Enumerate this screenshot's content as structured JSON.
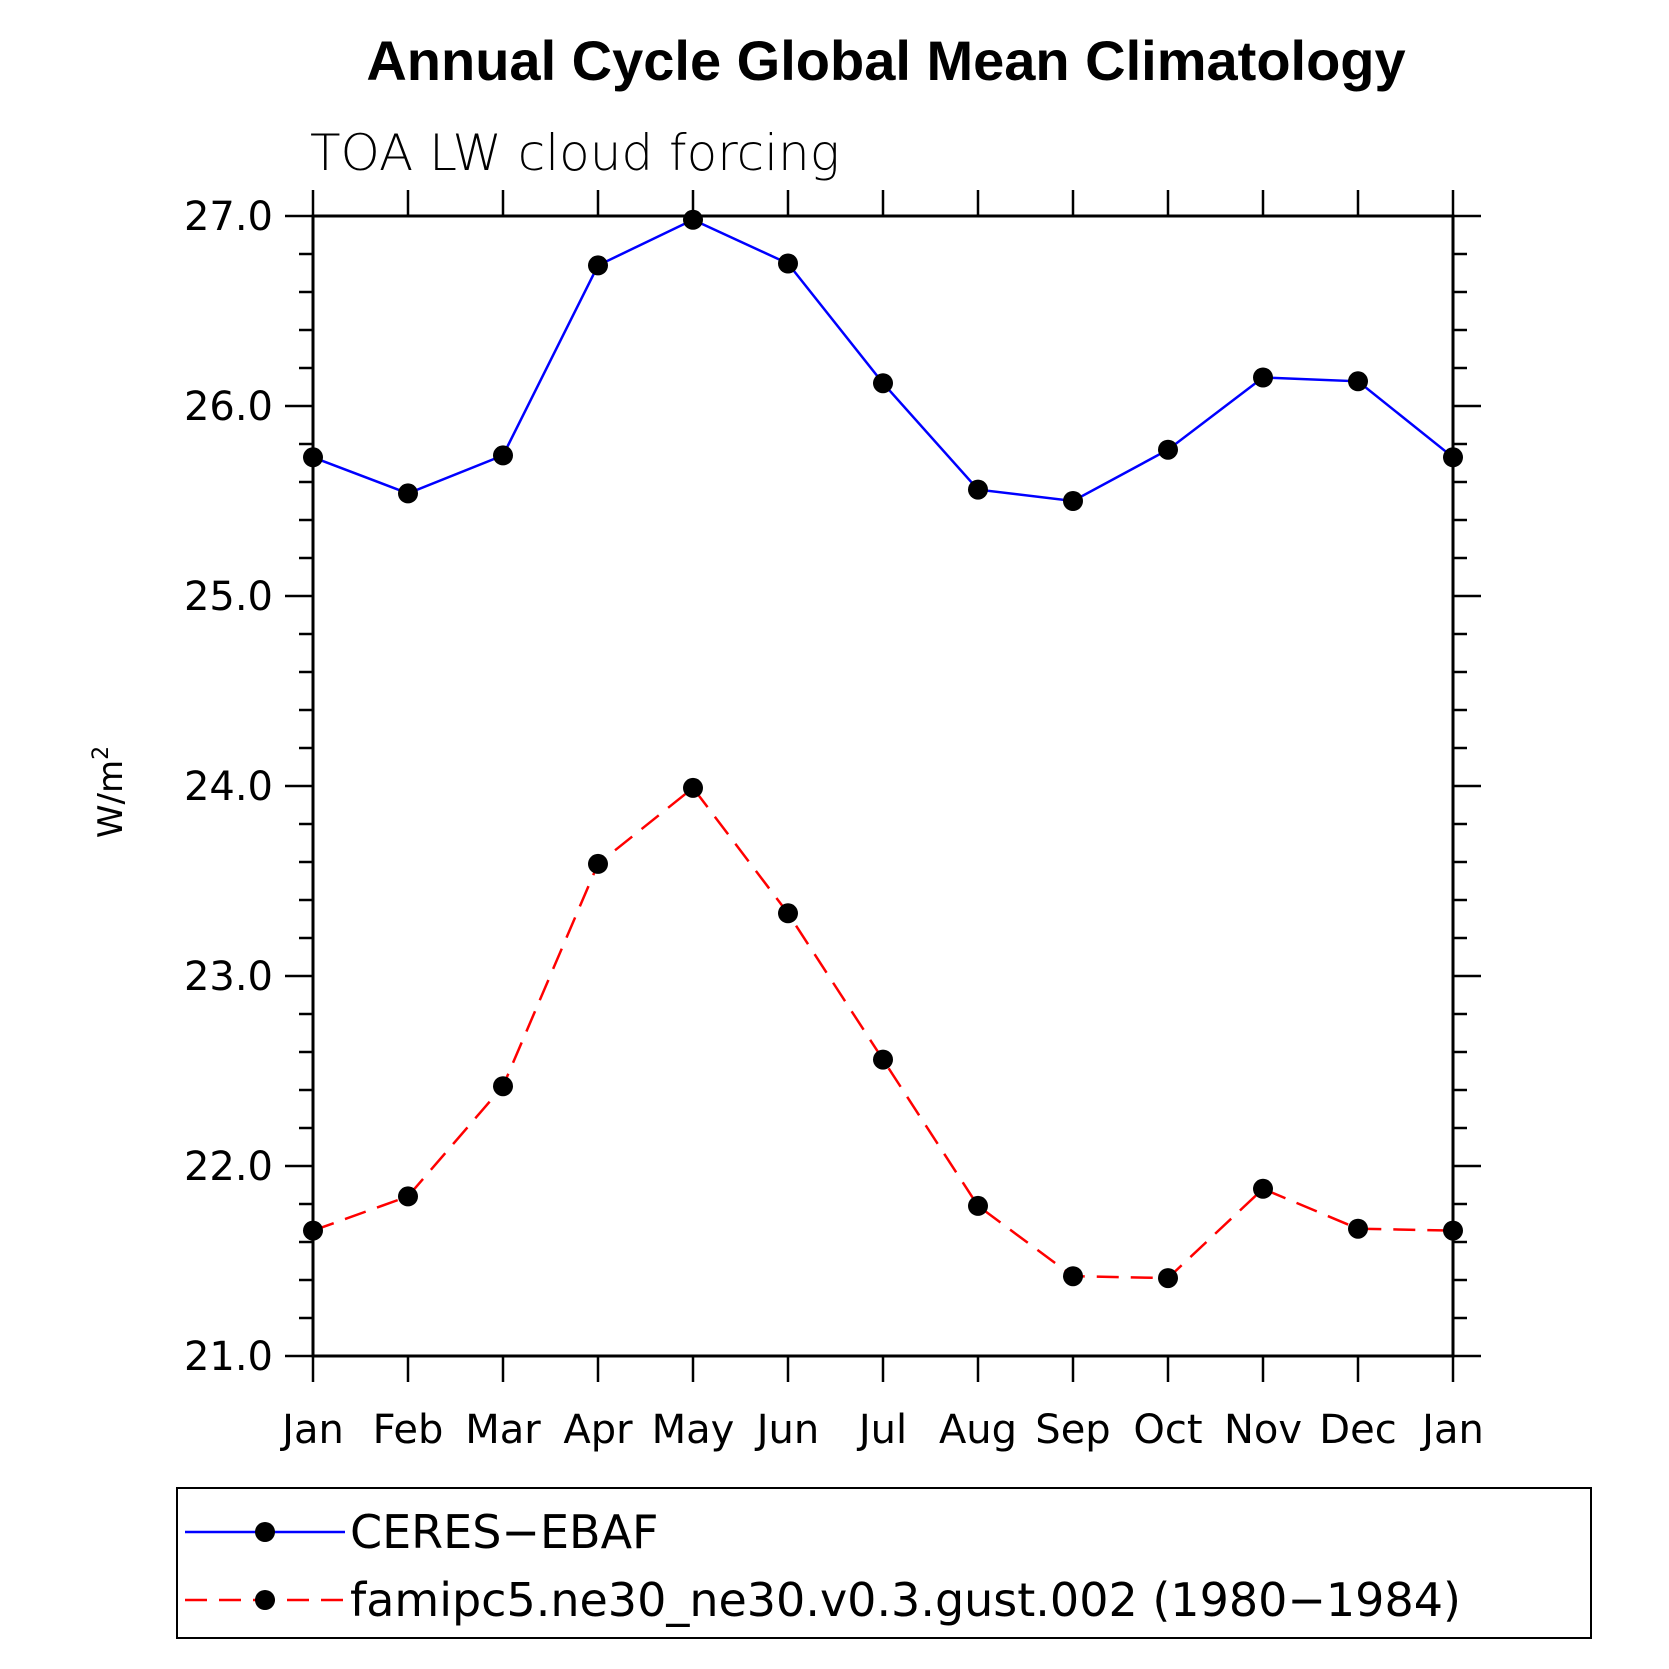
{
  "chart_data": {
    "type": "line",
    "title": "Annual Cycle Global Mean Climatology",
    "subtitle": "TOA LW cloud forcing",
    "ylabel": "W/m",
    "ylabel_sup": "2",
    "xlabel": "",
    "categories": [
      "Jan",
      "Feb",
      "Mar",
      "Apr",
      "May",
      "Jun",
      "Jul",
      "Aug",
      "Sep",
      "Oct",
      "Nov",
      "Dec",
      "Jan"
    ],
    "ylim": [
      21.0,
      27.0
    ],
    "yticks": [
      "21.0",
      "22.0",
      "23.0",
      "24.0",
      "25.0",
      "26.0",
      "27.0"
    ],
    "grid": false,
    "legend_position": "bottom",
    "series": [
      {
        "name": "CERES−EBAF",
        "color": "#0000ff",
        "dash": "solid",
        "values": [
          25.73,
          25.54,
          25.74,
          26.74,
          26.98,
          26.75,
          26.12,
          25.56,
          25.5,
          25.77,
          26.15,
          26.13,
          25.73
        ]
      },
      {
        "name": "famipc5.ne30_ne30.v0.3.gust.002 (1980−1984)",
        "color": "#ff0000",
        "dash": "dashed",
        "values": [
          21.66,
          21.84,
          22.42,
          23.59,
          23.99,
          23.33,
          22.56,
          21.79,
          21.42,
          21.41,
          21.88,
          21.67,
          21.66
        ]
      }
    ]
  }
}
